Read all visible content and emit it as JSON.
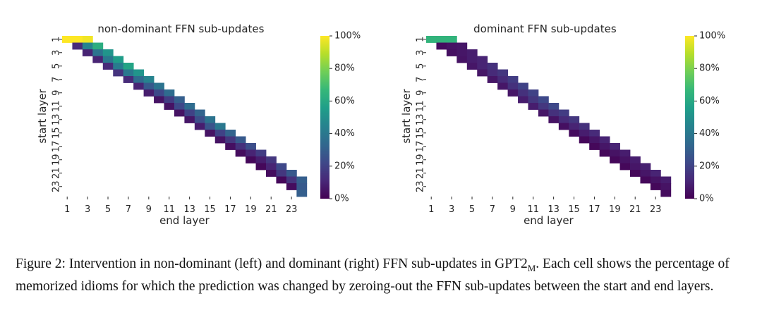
{
  "colorbar_ticks": [
    "0%",
    "20%",
    "40%",
    "60%",
    "80%",
    "100%"
  ],
  "viridis": [
    "#440154",
    "#482878",
    "#3e4989",
    "#31688e",
    "#26828e",
    "#1f9e89",
    "#35b779",
    "#6ece58",
    "#b5de2b",
    "#fde725"
  ],
  "chart_data": [
    {
      "type": "heatmap",
      "title": "non-dominant FFN sub-updates",
      "xlabel": "end layer",
      "ylabel": "start layer",
      "x_ticks": [
        "1",
        "3",
        "5",
        "7",
        "9",
        "11",
        "13",
        "15",
        "17",
        "19",
        "21",
        "23"
      ],
      "y_ticks": [
        "1",
        "3",
        "5",
        "7",
        "9",
        "11",
        "13",
        "15",
        "17",
        "19",
        "21",
        "23"
      ],
      "value_range": [
        0,
        100
      ],
      "value_unit": "%",
      "window": 3,
      "rows": [
        [
          100,
          100,
          98
        ],
        [
          12,
          45,
          62
        ],
        [
          10,
          38,
          52
        ],
        [
          10,
          40,
          55
        ],
        [
          12,
          42,
          58
        ],
        [
          15,
          40,
          52
        ],
        [
          12,
          35,
          45
        ],
        [
          10,
          28,
          38
        ],
        [
          8,
          22,
          35
        ],
        [
          5,
          18,
          30
        ],
        [
          5,
          22,
          35
        ],
        [
          5,
          20,
          32
        ],
        [
          6,
          24,
          38
        ],
        [
          8,
          26,
          40
        ],
        [
          5,
          20,
          32
        ],
        [
          5,
          16,
          28
        ],
        [
          4,
          14,
          24
        ],
        [
          3,
          10,
          18
        ],
        [
          2,
          8,
          16
        ],
        [
          2,
          10,
          22
        ],
        [
          3,
          16,
          28
        ],
        [
          2,
          15,
          30
        ],
        [
          3,
          28
        ],
        [
          30
        ]
      ]
    },
    {
      "type": "heatmap",
      "title": "dominant FFN sub-updates",
      "xlabel": "end layer",
      "ylabel": "start layer",
      "x_ticks": [
        "1",
        "3",
        "5",
        "7",
        "9",
        "11",
        "13",
        "15",
        "17",
        "19",
        "21",
        "23"
      ],
      "y_ticks": [
        "1",
        "3",
        "5",
        "7",
        "9",
        "11",
        "13",
        "15",
        "17",
        "19",
        "21",
        "23"
      ],
      "value_range": [
        0,
        100
      ],
      "value_unit": "%",
      "window": 3,
      "rows": [
        [
          65,
          65,
          65
        ],
        [
          3,
          5,
          6
        ],
        [
          4,
          6,
          8
        ],
        [
          5,
          8,
          10
        ],
        [
          6,
          10,
          14
        ],
        [
          6,
          12,
          16
        ],
        [
          6,
          12,
          18
        ],
        [
          6,
          14,
          20
        ],
        [
          6,
          14,
          20
        ],
        [
          8,
          16,
          22
        ],
        [
          8,
          16,
          22
        ],
        [
          6,
          14,
          18
        ],
        [
          5,
          12,
          16
        ],
        [
          4,
          10,
          14
        ],
        [
          3,
          8,
          12
        ],
        [
          2,
          6,
          10
        ],
        [
          2,
          6,
          10
        ],
        [
          2,
          5,
          8
        ],
        [
          2,
          5,
          8
        ],
        [
          2,
          6,
          9
        ],
        [
          2,
          6,
          10
        ],
        [
          2,
          5,
          8
        ],
        [
          2,
          5
        ],
        [
          3
        ]
      ]
    }
  ],
  "caption": {
    "prefix": "Figure 2: Intervention in non-dominant (left) and dominant (right) FFN sub-updates in GPT2",
    "subscript": "M",
    "suffix": ". Each cell shows the percentage of memorized idioms for which the prediction was changed by zeroing-out the FFN sub-updates between the start and end layers."
  }
}
